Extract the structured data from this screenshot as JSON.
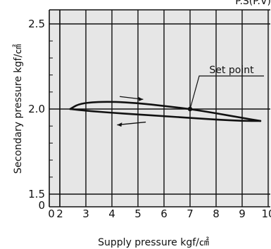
{
  "chart_data": {
    "type": "line",
    "title": "",
    "header_fragment": "P.S(P.V)",
    "xlabel": "Supply pressure kgf/㎠",
    "ylabel": "Secondary pressure kgf/㎠",
    "xlim": [
      0,
      10
    ],
    "x_break_after": 0,
    "x_ticks": [
      0,
      2,
      3,
      4,
      5,
      6,
      7,
      8,
      9,
      10
    ],
    "x_tick_labels": [
      "0",
      "2",
      "3",
      "4",
      "5",
      "6",
      "7",
      "8",
      "9",
      "10"
    ],
    "ylim": [
      0,
      2.5
    ],
    "y_ticks": [
      0,
      1.5,
      2.0,
      2.5
    ],
    "y_tick_labels": [
      "0",
      "1.5",
      "2.0",
      "2.5"
    ],
    "grid": true,
    "series": [
      {
        "direction": "increasing",
        "points": [
          [
            2.4,
            2.0
          ],
          [
            2.7,
            2.028
          ],
          [
            3.2,
            2.04
          ],
          [
            4.0,
            2.043
          ],
          [
            5.0,
            2.035
          ],
          [
            6.0,
            2.018
          ],
          [
            7.0,
            2.0
          ],
          [
            8.0,
            1.975
          ],
          [
            9.0,
            1.948
          ],
          [
            9.7,
            1.93
          ]
        ]
      },
      {
        "direction": "decreasing",
        "points": [
          [
            9.7,
            1.93
          ],
          [
            9.0,
            1.93
          ],
          [
            8.0,
            1.938
          ],
          [
            7.0,
            1.948
          ],
          [
            6.0,
            1.958
          ],
          [
            5.0,
            1.968
          ],
          [
            4.0,
            1.978
          ],
          [
            3.0,
            1.99
          ],
          [
            2.4,
            2.0
          ]
        ]
      }
    ],
    "annotations": [
      {
        "text": "Set point",
        "point": [
          7.0,
          2.0
        ]
      }
    ],
    "arrows": [
      {
        "direction": "right",
        "x": [
          4.3,
          5.2
        ],
        "y": 2.065
      },
      {
        "direction": "left",
        "x": [
          5.3,
          4.2
        ],
        "y": 1.915
      }
    ]
  }
}
